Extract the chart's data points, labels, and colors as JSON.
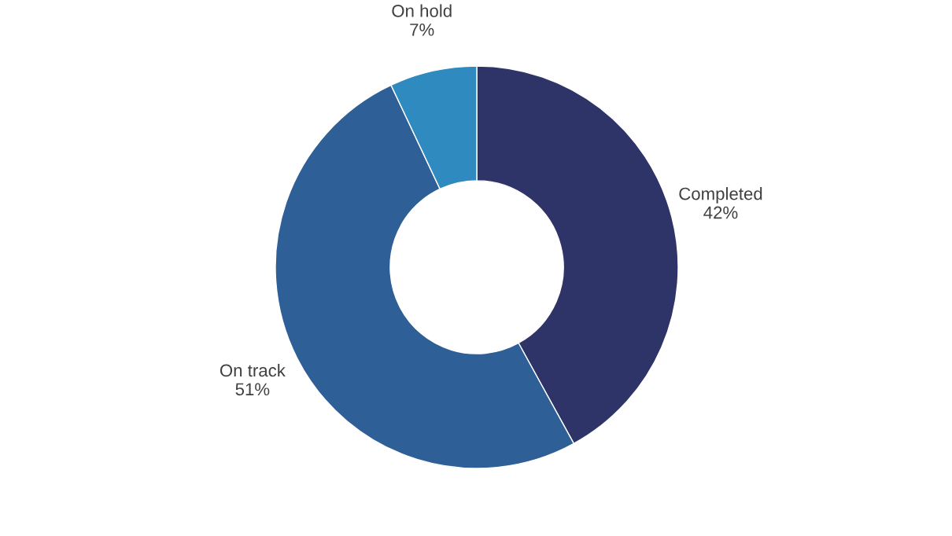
{
  "chart_data": {
    "type": "donut",
    "categories": [
      "Completed",
      "On track",
      "On hold"
    ],
    "values": [
      42,
      51,
      7
    ],
    "value_labels": [
      "42%",
      "51%",
      "7%"
    ],
    "colors": [
      "#2e3468",
      "#2e5f96",
      "#2f8bbf"
    ],
    "legend": false
  }
}
